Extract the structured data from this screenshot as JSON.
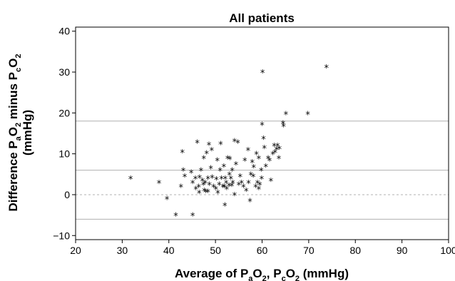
{
  "chart_data": {
    "type": "scatter",
    "title": "All patients",
    "xlabel": {
      "parts": [
        "Average of P",
        "a",
        "O",
        "2",
        ", P",
        "c",
        "O",
        "2",
        " (mmHg)"
      ]
    },
    "ylabel": {
      "parts": [
        "Difference P",
        "a",
        "O",
        "2",
        " minus P",
        "c",
        "O",
        "2"
      ],
      "unit": "(mmHg)"
    },
    "xlim": [
      20,
      100
    ],
    "ylim": [
      -11,
      41
    ],
    "xticks": [
      "20",
      "30",
      "40",
      "50",
      "60",
      "70",
      "80",
      "90",
      "100"
    ],
    "yticks": [
      "−10",
      "0",
      "10",
      "20",
      "30",
      "40"
    ],
    "ytick_values": [
      -10,
      0,
      10,
      20,
      30,
      40
    ],
    "xtick_values": [
      20,
      30,
      40,
      50,
      60,
      70,
      80,
      90,
      100
    ],
    "reference_lines": [
      18,
      6,
      -6
    ],
    "zero_line": 0,
    "marker": "*",
    "points": [
      [
        31.8,
        4
      ],
      [
        37.9,
        3
      ],
      [
        39.6,
        -1
      ],
      [
        41.5,
        -5
      ],
      [
        42.6,
        2
      ],
      [
        42.9,
        10.5
      ],
      [
        43.4,
        4.5
      ],
      [
        43.1,
        6
      ],
      [
        44.8,
        5.5
      ],
      [
        45.1,
        -5
      ],
      [
        45.1,
        3
      ],
      [
        45.8,
        1.5
      ],
      [
        45.7,
        4
      ],
      [
        46.1,
        12.8
      ],
      [
        46.4,
        2
      ],
      [
        46.5,
        0.5
      ],
      [
        46.9,
        6
      ],
      [
        46.6,
        4.3
      ],
      [
        47.2,
        3.5
      ],
      [
        47.4,
        2.5
      ],
      [
        47.6,
        1
      ],
      [
        47.9,
        0.8
      ],
      [
        47.8,
        3
      ],
      [
        47.5,
        9
      ],
      [
        48.1,
        10.2
      ],
      [
        48.4,
        4
      ],
      [
        48.7,
        2.5
      ],
      [
        48.4,
        0.8
      ],
      [
        48.6,
        12.3
      ],
      [
        49.0,
        6.5
      ],
      [
        49.3,
        4.3
      ],
      [
        49.2,
        11
      ],
      [
        49.6,
        2
      ],
      [
        50.1,
        1.5
      ],
      [
        50.2,
        3.8
      ],
      [
        50.4,
        8.5
      ],
      [
        50.5,
        0.5
      ],
      [
        50.8,
        2.5
      ],
      [
        51.0,
        6
      ],
      [
        51.3,
        4
      ],
      [
        51.1,
        12.5
      ],
      [
        51.6,
        2
      ],
      [
        51.8,
        7
      ],
      [
        51.9,
        2
      ],
      [
        52.1,
        4
      ],
      [
        52.3,
        3
      ],
      [
        52.0,
        -2.5
      ],
      [
        52.4,
        1.5
      ],
      [
        52.6,
        9
      ],
      [
        52.9,
        2.3
      ],
      [
        53.0,
        5
      ],
      [
        53.1,
        8.8
      ],
      [
        53.3,
        4
      ],
      [
        53.5,
        2.3
      ],
      [
        53.7,
        3
      ],
      [
        53.6,
        6
      ],
      [
        54.1,
        0
      ],
      [
        54.1,
        13.2
      ],
      [
        54.4,
        7.5
      ],
      [
        54.8,
        12.8
      ],
      [
        55.0,
        2.5
      ],
      [
        55.3,
        4.5
      ],
      [
        55.6,
        3
      ],
      [
        56.0,
        2
      ],
      [
        56.3,
        8.5
      ],
      [
        56.6,
        1
      ],
      [
        57.1,
        3
      ],
      [
        57.0,
        11
      ],
      [
        57.4,
        -1.5
      ],
      [
        57.6,
        5
      ],
      [
        57.9,
        8
      ],
      [
        58.1,
        4.5
      ],
      [
        58.2,
        6.8
      ],
      [
        58.6,
        2
      ],
      [
        58.8,
        10
      ],
      [
        59.0,
        3
      ],
      [
        59.3,
        1.5
      ],
      [
        59.3,
        9
      ],
      [
        59.5,
        2.5
      ],
      [
        59.8,
        6
      ],
      [
        59.9,
        4
      ],
      [
        60.0,
        17.2
      ],
      [
        60.1,
        30
      ],
      [
        60.3,
        13.8
      ],
      [
        60.5,
        11.5
      ],
      [
        60.8,
        7
      ],
      [
        61.3,
        9
      ],
      [
        61.6,
        8.5
      ],
      [
        61.9,
        3.5
      ],
      [
        62.3,
        10
      ],
      [
        62.6,
        12
      ],
      [
        62.8,
        10.5
      ],
      [
        63.1,
        11.2
      ],
      [
        63.3,
        12
      ],
      [
        63.7,
        11.3
      ],
      [
        63.6,
        9
      ],
      [
        64.5,
        17.5
      ],
      [
        64.6,
        16.8
      ],
      [
        65.1,
        19.8
      ],
      [
        69.8,
        19.8
      ],
      [
        73.8,
        31.2
      ]
    ]
  }
}
